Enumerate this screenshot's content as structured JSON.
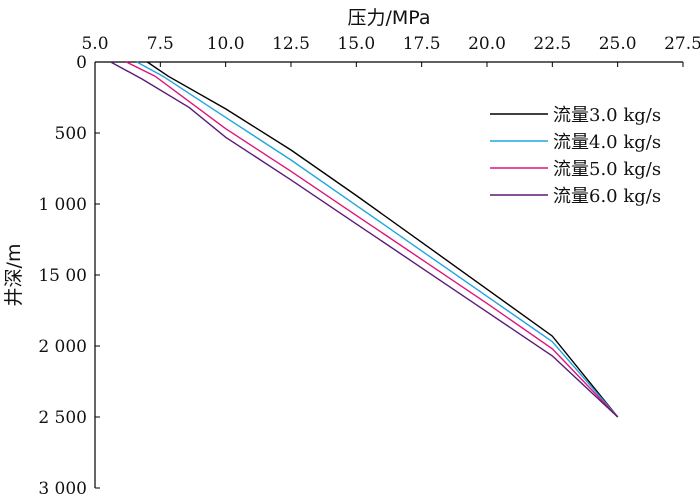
{
  "chart_data": {
    "type": "line",
    "xlabel": "压力/MPa",
    "ylabel": "井深/m",
    "xlim": [
      5.0,
      27.5
    ],
    "ylim": [
      0,
      3000
    ],
    "y_inverted": true,
    "x_axis_position": "top",
    "x_ticks": [
      5.0,
      7.5,
      10.0,
      12.5,
      15.0,
      17.5,
      20.0,
      22.5,
      25.0,
      27.5
    ],
    "x_tick_labels": [
      "5.0",
      "7.5",
      "10.0",
      "12.5",
      "15.0",
      "17.5",
      "20.0",
      "22.5",
      "25.0",
      "27.5"
    ],
    "y_ticks": [
      0,
      500,
      1000,
      1500,
      2000,
      2500,
      3000
    ],
    "y_tick_labels": [
      "0",
      "500",
      "1 000",
      "15 00",
      "2 000",
      "2 500",
      "3 000"
    ],
    "grid": false,
    "legend_position": "top-right",
    "series": [
      {
        "name": "流量3.0 kg/s",
        "color": "#000000",
        "x": [
          7.0,
          7.8,
          10.0,
          12.5,
          15.0,
          17.5,
          20.0,
          22.5,
          25.0
        ],
        "y": [
          0,
          100,
          330,
          620,
          940,
          1270,
          1600,
          1930,
          2500
        ]
      },
      {
        "name": "流量4.0 kg/s",
        "color": "#1ea6e0",
        "x": [
          6.6,
          7.6,
          10.0,
          12.5,
          15.0,
          17.5,
          20.0,
          22.5,
          25.0
        ],
        "y": [
          0,
          100,
          390,
          690,
          1010,
          1330,
          1650,
          1970,
          2500
        ]
      },
      {
        "name": "流量5.0 kg/s",
        "color": "#e0147a",
        "x": [
          6.2,
          7.3,
          10.0,
          12.5,
          15.0,
          17.5,
          20.0,
          22.5,
          25.0
        ],
        "y": [
          0,
          100,
          470,
          770,
          1080,
          1390,
          1700,
          2020,
          2500
        ]
      },
      {
        "name": "流量6.0 kg/s",
        "color": "#5a1a78",
        "x": [
          5.6,
          6.8,
          8.6,
          10.0,
          12.5,
          15.0,
          17.5,
          20.0,
          22.5,
          25.0
        ],
        "y": [
          0,
          120,
          320,
          530,
          830,
          1140,
          1450,
          1760,
          2070,
          2500
        ]
      }
    ]
  }
}
